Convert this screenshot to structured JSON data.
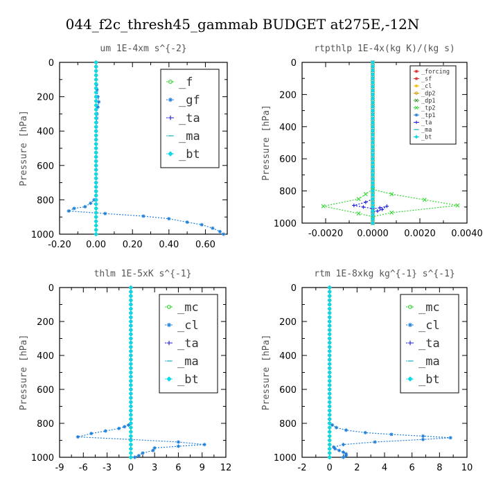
{
  "suptitle": "044_f2c_thresh45_gammab  BUDGET at275E,-12N",
  "chart_data": [
    {
      "type": "line",
      "title": "um   1E-4xm s^{-2}",
      "ylabel": "Pressure [hPa]",
      "xlim": [
        -0.2,
        0.72
      ],
      "ylim": [
        1000,
        0
      ],
      "xticks": [
        -0.2,
        0.0,
        0.2,
        0.4,
        0.6
      ],
      "xtick_labels": [
        "-0.20",
        "0.00",
        "0.20",
        "0.40",
        "0.60"
      ],
      "yticks": [
        0,
        200,
        400,
        600,
        800,
        1000
      ],
      "ytick_labels": [
        "0",
        "200",
        "400",
        "600",
        "800",
        "1000"
      ],
      "legend_position": "top-right",
      "legend_size": "large",
      "series": [
        {
          "name": "_f",
          "color": "#2fd72f",
          "marker": "ring",
          "points": [
            [
              0,
              0
            ],
            [
              0,
              100
            ],
            [
              0,
              200
            ],
            [
              0,
              300
            ],
            [
              0,
              400
            ],
            [
              0,
              500
            ],
            [
              0,
              600
            ],
            [
              0,
              700
            ],
            [
              0,
              800
            ],
            [
              0,
              900
            ],
            [
              0,
              1000
            ]
          ]
        },
        {
          "name": "_gf",
          "color": "#1e7fd8",
          "marker": "star",
          "points": [
            [
              0,
              0
            ],
            [
              0,
              100
            ],
            [
              0.005,
              160
            ],
            [
              0.01,
              200
            ],
            [
              0.015,
              230
            ],
            [
              0.01,
              260
            ],
            [
              0.005,
              300
            ],
            [
              0,
              400
            ],
            [
              0,
              600
            ],
            [
              0,
              800
            ],
            [
              -0.01,
              800
            ],
            [
              -0.03,
              820
            ],
            [
              -0.06,
              840
            ],
            [
              -0.12,
              850
            ],
            [
              -0.15,
              865
            ],
            [
              0.05,
              880
            ],
            [
              0.26,
              895
            ],
            [
              0.4,
              910
            ],
            [
              0.5,
              930
            ],
            [
              0.58,
              945
            ],
            [
              0.64,
              965
            ],
            [
              0.68,
              985
            ],
            [
              0.7,
              1000
            ]
          ]
        },
        {
          "name": "_ta",
          "color": "#1a1adb",
          "marker": "plus",
          "points": [
            [
              0,
              0
            ],
            [
              0,
              500
            ],
            [
              0,
              1000
            ]
          ]
        },
        {
          "name": "_ma",
          "color": "#1fb0c0",
          "marker": "dash",
          "points": [
            [
              0,
              0
            ],
            [
              0,
              500
            ],
            [
              0,
              1000
            ]
          ]
        },
        {
          "name": "_bt",
          "color": "#10d8e8",
          "marker": "diamond",
          "points": [
            [
              0,
              0
            ],
            [
              0,
              200
            ],
            [
              0,
              400
            ],
            [
              0,
              600
            ],
            [
              0,
              800
            ],
            [
              0,
              1000
            ]
          ]
        }
      ]
    },
    {
      "type": "line",
      "title": "rtpthlp   1E-4x(kg K)/(kg s)",
      "ylabel": "Pressure [hPa]",
      "xlim": [
        -0.003,
        0.004
      ],
      "ylim": [
        1000,
        0
      ],
      "xticks": [
        -0.002,
        0.0,
        0.002,
        0.004
      ],
      "xtick_labels": [
        "-0.0020",
        "0.0000",
        "0.0020",
        "0.0040"
      ],
      "yticks": [
        0,
        200,
        400,
        600,
        800,
        1000
      ],
      "ytick_labels": [
        "0",
        "200",
        "400",
        "600",
        "800",
        "1000"
      ],
      "legend_position": "top-right",
      "legend_size": "small",
      "series": [
        {
          "name": "_forcing",
          "color": "#e02020",
          "marker": "star",
          "points": [
            [
              0,
              0
            ],
            [
              0,
              500
            ],
            [
              0,
              1000
            ]
          ]
        },
        {
          "name": "_sf",
          "color": "#e03030",
          "marker": "star",
          "points": [
            [
              0,
              0
            ],
            [
              0,
              500
            ],
            [
              0,
              1000
            ]
          ]
        },
        {
          "name": "_cl",
          "color": "#e8c000",
          "marker": "star",
          "points": [
            [
              0,
              0
            ],
            [
              0,
              500
            ],
            [
              0,
              1000
            ]
          ]
        },
        {
          "name": "_dp2",
          "color": "#d8a000",
          "marker": "ring",
          "points": [
            [
              0,
              0
            ],
            [
              0,
              500
            ],
            [
              0,
              1000
            ]
          ]
        },
        {
          "name": "_dp1",
          "color": "#3a9a3a",
          "marker": "x",
          "points": [
            [
              0,
              0
            ],
            [
              0,
              500
            ],
            [
              0,
              1000
            ]
          ]
        },
        {
          "name": "_tp2",
          "color": "#2fd72f",
          "marker": "x",
          "points": [
            [
              0,
              790
            ],
            [
              0.0008,
              820
            ],
            [
              0.0036,
              890
            ],
            [
              0.0008,
              935
            ],
            [
              0,
              960
            ],
            [
              -0.0006,
              940
            ],
            [
              -0.0021,
              895
            ],
            [
              -0.0006,
              850
            ],
            [
              0,
              790
            ]
          ]
        },
        {
          "name": "_tp1",
          "color": "#1e7fd8",
          "marker": "star",
          "points": [
            [
              0,
              0
            ],
            [
              0,
              500
            ],
            [
              0,
              1000
            ]
          ]
        },
        {
          "name": "_ta",
          "color": "#1a1adb",
          "marker": "plus",
          "points": [
            [
              0,
              850
            ],
            [
              -0.0003,
              870
            ],
            [
              -0.0008,
              890
            ],
            [
              -0.0004,
              900
            ],
            [
              0,
              910
            ],
            [
              0.0003,
              905
            ],
            [
              0.0006,
              895
            ],
            [
              0.0004,
              915
            ],
            [
              0.0002,
              925
            ],
            [
              0,
              930
            ]
          ]
        },
        {
          "name": "_ma",
          "color": "#1fb0c0",
          "marker": "dash",
          "points": [
            [
              0,
              0
            ],
            [
              0,
              500
            ],
            [
              0,
              1000
            ]
          ]
        },
        {
          "name": "_bt",
          "color": "#10d8e8",
          "marker": "diamond",
          "points": [
            [
              0,
              0
            ],
            [
              0,
              500
            ],
            [
              0,
              1000
            ]
          ]
        }
      ]
    },
    {
      "type": "line",
      "title": "thlm   1E-5xK s^{-1}",
      "ylabel": "Pressure [hPa]",
      "xlim": [
        -9,
        12
      ],
      "ylim": [
        1000,
        0
      ],
      "xticks": [
        -9,
        -6,
        -3,
        0,
        3,
        6,
        9,
        12
      ],
      "xtick_labels": [
        "-9",
        "-6",
        "-3",
        "0",
        "3",
        "6",
        "9",
        "12"
      ],
      "yticks": [
        0,
        200,
        400,
        600,
        800,
        1000
      ],
      "ytick_labels": [
        "0",
        "200",
        "400",
        "600",
        "800",
        "1000"
      ],
      "legend_position": "top-right",
      "legend_size": "large",
      "series": [
        {
          "name": "_mc",
          "color": "#2fd72f",
          "marker": "ring",
          "points": [
            [
              0,
              0
            ],
            [
              0,
              200
            ],
            [
              0,
              400
            ],
            [
              0,
              600
            ],
            [
              0,
              800
            ],
            [
              0,
              1000
            ]
          ]
        },
        {
          "name": "_cl",
          "color": "#1e7fd8",
          "marker": "star",
          "points": [
            [
              0,
              0
            ],
            [
              0,
              800
            ],
            [
              -0.3,
              810
            ],
            [
              -0.8,
              820
            ],
            [
              -1.5,
              830
            ],
            [
              -3.2,
              845
            ],
            [
              -5.0,
              860
            ],
            [
              -6.7,
              880
            ],
            [
              0,
              895
            ],
            [
              6.0,
              910
            ],
            [
              9.3,
              925
            ],
            [
              6.0,
              935
            ],
            [
              3.0,
              945
            ],
            [
              2.8,
              960
            ],
            [
              1.5,
              975
            ],
            [
              1.0,
              990
            ],
            [
              0.5,
              1000
            ]
          ]
        },
        {
          "name": "_ta",
          "color": "#1a1adb",
          "marker": "plus",
          "points": [
            [
              0,
              0
            ],
            [
              0,
              500
            ],
            [
              0,
              1000
            ]
          ]
        },
        {
          "name": "_ma",
          "color": "#1fb0c0",
          "marker": "dash",
          "points": [
            [
              0,
              0
            ],
            [
              0,
              500
            ],
            [
              0,
              1000
            ]
          ]
        },
        {
          "name": "_bt",
          "color": "#10d8e8",
          "marker": "diamond",
          "points": [
            [
              0,
              0
            ],
            [
              0,
              200
            ],
            [
              0,
              400
            ],
            [
              0,
              600
            ],
            [
              0,
              800
            ],
            [
              0,
              1000
            ]
          ]
        }
      ]
    },
    {
      "type": "line",
      "title": "rtm   1E-8xkg kg^{-1} s^{-1}",
      "ylabel": "Pressure [hPa]",
      "xlim": [
        -2,
        10
      ],
      "ylim": [
        1000,
        0
      ],
      "xticks": [
        -2,
        0,
        2,
        4,
        6,
        8,
        10
      ],
      "xtick_labels": [
        "-2",
        "0",
        "2",
        "4",
        "6",
        "8",
        "10"
      ],
      "yticks": [
        0,
        200,
        400,
        600,
        800,
        1000
      ],
      "ytick_labels": [
        "0",
        "200",
        "400",
        "600",
        "800",
        "1000"
      ],
      "legend_position": "top-right",
      "legend_size": "large",
      "series": [
        {
          "name": "_mc",
          "color": "#2fd72f",
          "marker": "ring",
          "points": [
            [
              0,
              0
            ],
            [
              0,
              200
            ],
            [
              0,
              400
            ],
            [
              0,
              600
            ],
            [
              0,
              800
            ],
            [
              0,
              1000
            ]
          ]
        },
        {
          "name": "_cl",
          "color": "#1e7fd8",
          "marker": "star",
          "points": [
            [
              0,
              0
            ],
            [
              0,
              800
            ],
            [
              0.2,
              810
            ],
            [
              0.5,
              825
            ],
            [
              1.2,
              840
            ],
            [
              2.6,
              855
            ],
            [
              4.5,
              865
            ],
            [
              6.8,
              875
            ],
            [
              8.8,
              885
            ],
            [
              6.8,
              895
            ],
            [
              3.3,
              910
            ],
            [
              1.0,
              925
            ],
            [
              0.3,
              940
            ],
            [
              0.4,
              950
            ],
            [
              0.7,
              960
            ],
            [
              1.0,
              970
            ],
            [
              1.2,
              980
            ],
            [
              1.2,
              990
            ],
            [
              1.0,
              1000
            ]
          ]
        },
        {
          "name": "_ta",
          "color": "#1a1adb",
          "marker": "plus",
          "points": [
            [
              0,
              0
            ],
            [
              0,
              500
            ],
            [
              0,
              1000
            ]
          ]
        },
        {
          "name": "_ma",
          "color": "#1fb0c0",
          "marker": "dash",
          "points": [
            [
              0,
              0
            ],
            [
              0,
              500
            ],
            [
              0,
              1000
            ]
          ]
        },
        {
          "name": "_bt",
          "color": "#10d8e8",
          "marker": "diamond",
          "points": [
            [
              0,
              0
            ],
            [
              0,
              200
            ],
            [
              0,
              400
            ],
            [
              0,
              600
            ],
            [
              0,
              800
            ],
            [
              0,
              1000
            ]
          ]
        }
      ]
    }
  ]
}
